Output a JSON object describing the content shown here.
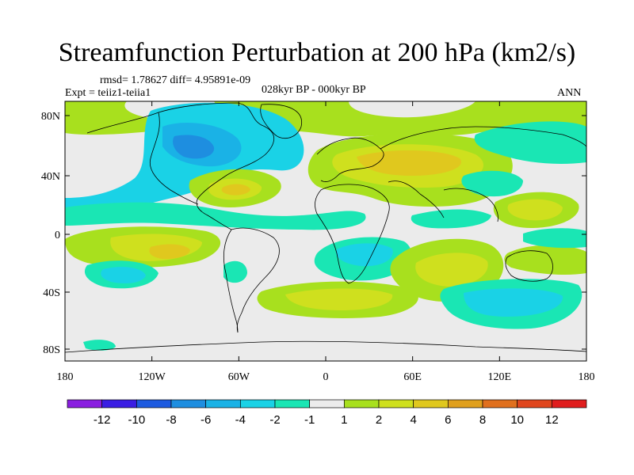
{
  "title": "Streamfunction Perturbation at 200 hPa (km2/s)",
  "stats": "rmsd= 1.78627 diff= 4.95891e-09",
  "expt": "Expt = teiiz1-teiia1",
  "period": "028kyr BP - 000kyr BP",
  "season": "ANN",
  "map": {
    "lon_ticks": [
      "180",
      "120W",
      "60W",
      "0",
      "60E",
      "120E",
      "180"
    ],
    "lat_ticks": [
      "80N",
      "40N",
      "0",
      "40S",
      "80S"
    ]
  },
  "colorbar": {
    "colors": [
      "#8a1fe0",
      "#3a1ee3",
      "#1e5be0",
      "#1e8ee0",
      "#1ab2e6",
      "#1ad2e6",
      "#1ae6b4",
      "#ececec",
      "#a8e01e",
      "#cfe01e",
      "#e0c81e",
      "#e0a01e",
      "#e0701e",
      "#e0461e",
      "#e01e1e"
    ],
    "labels": [
      "-12",
      "-10",
      "-8",
      "-6",
      "-4",
      "-2",
      "-1",
      "1",
      "2",
      "4",
      "6",
      "8",
      "10",
      "12"
    ]
  }
}
